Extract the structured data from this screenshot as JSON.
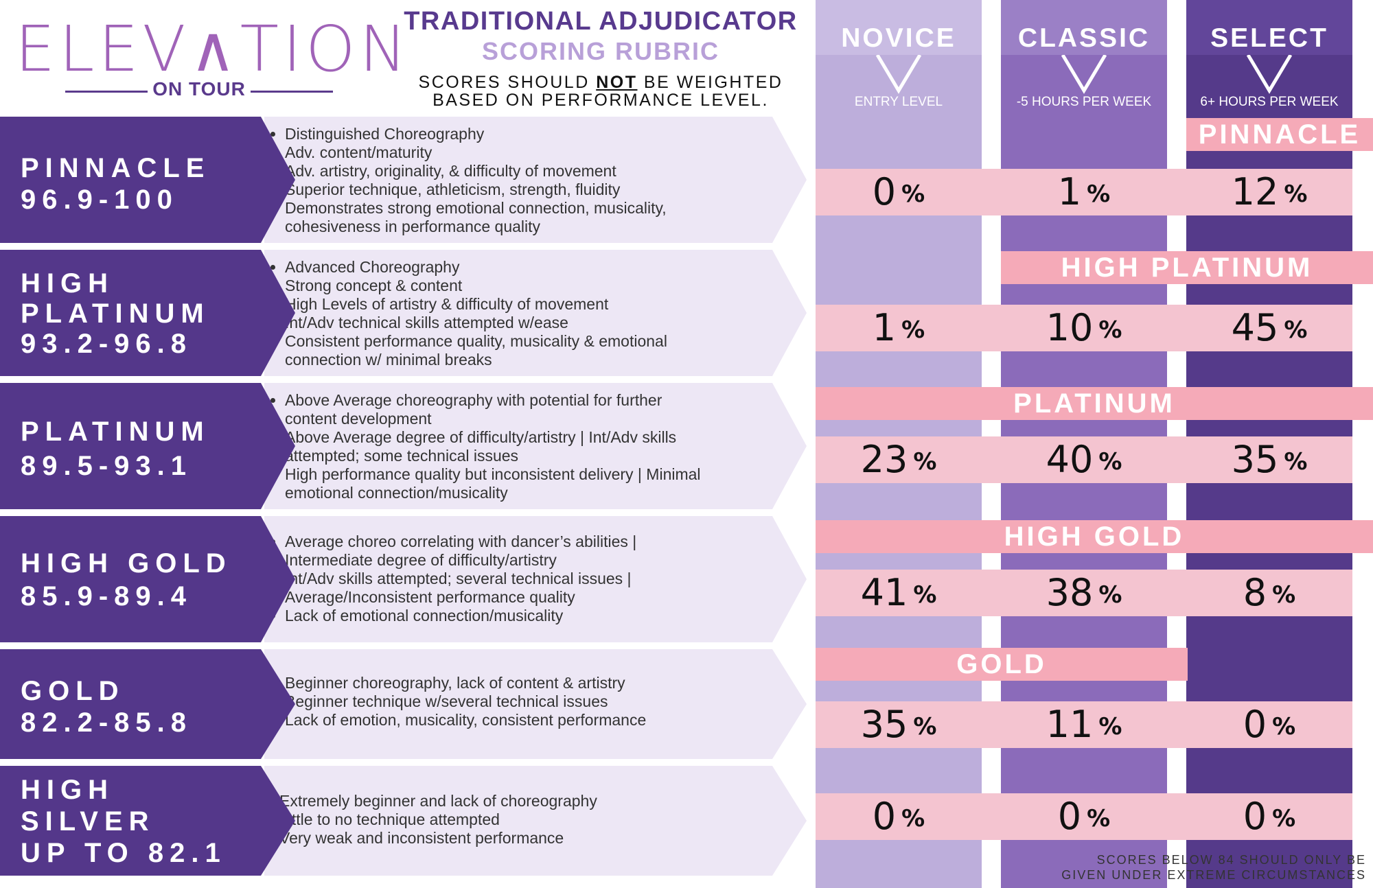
{
  "logo": {
    "word": "ELEV∧TION",
    "sub": "ON TOUR"
  },
  "header": {
    "title": "TRADITIONAL ADJUDICATOR",
    "subtitle": "SCORING RUBRIC",
    "note_pre": "SCORES SHOULD ",
    "note_emph": "NOT",
    "note_post": " BE WEIGHTED",
    "note_line2": "BASED ON PERFORMANCE LEVEL."
  },
  "columns": [
    {
      "name": "NOVICE",
      "sub": "ENTRY LEVEL"
    },
    {
      "name": "CLASSIC",
      "sub": "-5 HOURS PER WEEK"
    },
    {
      "name": "SELECT",
      "sub": "6+ HOURS PER WEEK"
    }
  ],
  "rows": [
    {
      "label1": "PINNACLE",
      "label2": "96.9-100",
      "label3": "",
      "bullets": [
        "Distinguished Choreography",
        "Adv. content/maturity",
        "Adv. artistry, originality, & difficulty of movement",
        "Superior technique, athleticism, strength, fluidity",
        "Demonstrates strong emotional connection, musicality, cohesiveness in performance quality"
      ]
    },
    {
      "label1": "HIGH",
      "label2": "PLATINUM",
      "label3": "93.2-96.8",
      "bullets": [
        "Advanced Choreography",
        "Strong concept & content",
        "High Levels of artistry & difficulty of movement",
        "Int/Adv technical skills attempted w/ease",
        "Consistent performance quality, musicality & emotional connection w/ minimal breaks"
      ]
    },
    {
      "label1": "PLATINUM",
      "label2": "89.5-93.1",
      "label3": "",
      "bullets": [
        "Above Average choreography with potential for further content development",
        "Above Average degree of difficulty/artistry | Int/Adv skills attempted; some technical issues",
        "High performance quality but inconsistent delivery | Minimal emotional connection/musicality"
      ]
    },
    {
      "label1": "HIGH GOLD",
      "label2": "85.9-89.4",
      "label3": "",
      "bullets": [
        "Average choreo correlating with dancer’s abilities | Intermediate degree of difficulty/artistry",
        "Int/Adv skills attempted; several technical issues | Average/Inconsistent performance quality",
        "Lack of emotional connection/musicality"
      ]
    },
    {
      "label1": "GOLD",
      "label2": "82.2-85.8",
      "label3": "",
      "bullets": [
        "Beginner choreography, lack of content & artistry",
        "Beginner technique w/several technical issues",
        "Lack of emotion, musicality, consistent performance"
      ]
    },
    {
      "label1": "HIGH",
      "label2": "SILVER",
      "label3": "UP TO 82.1",
      "bullets": [
        "Extremely beginner and lack of choreography",
        "Little to no technique attempted",
        "Very weak and inconsistent performance"
      ]
    }
  ],
  "tiers": [
    "PINNACLE",
    "HIGH PLATINUM",
    "PLATINUM",
    "HIGH GOLD",
    "GOLD"
  ],
  "percentages": [
    {
      "novice": "0",
      "classic": "1",
      "select": "12"
    },
    {
      "novice": "1",
      "classic": "10",
      "select": "45"
    },
    {
      "novice": "23",
      "classic": "40",
      "select": "35"
    },
    {
      "novice": "41",
      "classic": "38",
      "select": "8"
    },
    {
      "novice": "35",
      "classic": "11",
      "select": "0"
    },
    {
      "novice": "0",
      "classic": "0",
      "select": "0"
    }
  ],
  "percent_symbol": "%",
  "footer_note_line1": "SCORES BELOW 84 SHOULD ONLY BE",
  "footer_note_line2": "GIVEN UNDER EXTREME CIRCUMSTANCES",
  "colors": {
    "novice": "#bdaedb",
    "classic": "#8b6bba",
    "select": "#553a8a",
    "label_bg": "#54378a",
    "pink": "#f4c4d0",
    "tier_pink": "#f5aab8"
  }
}
